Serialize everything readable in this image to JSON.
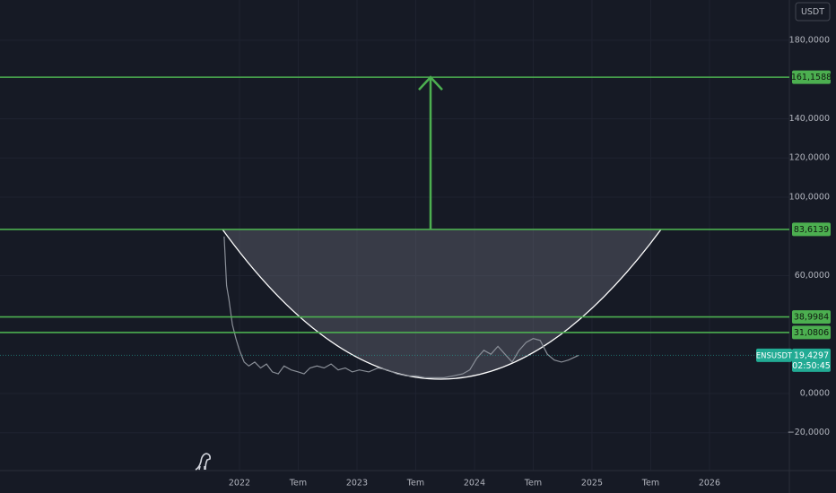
{
  "chart_data": {
    "type": "line",
    "currency_label": "USDT",
    "xlim": [
      2019.962,
      2026.68
    ],
    "xticks": [
      {
        "value": 2022.0,
        "label": "2022"
      },
      {
        "value": 2022.5,
        "label": "Tem"
      },
      {
        "value": 2023.0,
        "label": "2023"
      },
      {
        "value": 2023.5,
        "label": "Tem"
      },
      {
        "value": 2024.0,
        "label": "2024"
      },
      {
        "value": 2024.5,
        "label": "Tem"
      },
      {
        "value": 2025.0,
        "label": "2025"
      },
      {
        "value": 2025.5,
        "label": "Tem"
      },
      {
        "value": 2026.0,
        "label": "2026"
      }
    ],
    "ylim": [
      -39.3,
      200.5
    ],
    "yticks": [
      {
        "value": 180,
        "label": "180,0000"
      },
      {
        "value": 140,
        "label": "140,0000"
      },
      {
        "value": 120,
        "label": "120,0000"
      },
      {
        "value": 100,
        "label": "100,0000"
      },
      {
        "value": 60,
        "label": "60,0000"
      },
      {
        "value": 0,
        "label": "0,0000"
      },
      {
        "value": -20,
        "label": "−20,0000"
      }
    ],
    "grid": true,
    "series": [
      {
        "name": "ENSUSDT",
        "color": "#8a8f98",
        "x": [
          2021.87,
          2021.89,
          2021.91,
          2021.94,
          2021.97,
          2022.0,
          2022.04,
          2022.08,
          2022.13,
          2022.18,
          2022.23,
          2022.28,
          2022.33,
          2022.38,
          2022.44,
          2022.5,
          2022.55,
          2022.6,
          2022.66,
          2022.72,
          2022.78,
          2022.84,
          2022.9,
          2022.96,
          2023.02,
          2023.1,
          2023.18,
          2023.26,
          2023.34,
          2023.42,
          2023.5,
          2023.58,
          2023.66,
          2023.74,
          2023.82,
          2023.9,
          2023.96,
          2024.02,
          2024.08,
          2024.14,
          2024.2,
          2024.26,
          2024.32,
          2024.38,
          2024.44,
          2024.5,
          2024.56,
          2024.62,
          2024.68,
          2024.74,
          2024.8,
          2024.885
        ],
        "values": [
          80,
          55,
          48,
          35,
          28,
          22,
          16,
          14,
          16,
          13,
          15,
          11,
          10,
          14,
          12,
          11,
          10,
          13,
          14,
          13,
          15,
          12,
          13,
          11,
          12,
          11,
          13,
          12,
          10,
          9,
          9,
          8,
          8,
          8,
          9,
          10,
          12,
          18,
          22,
          20,
          24,
          20,
          16,
          22,
          26,
          28,
          27,
          20,
          17,
          16,
          17,
          19.4297
        ]
      }
    ],
    "levels": [
      {
        "value": 161.1588,
        "label": "161,1588"
      },
      {
        "value": 83.6139,
        "label": "83,6139"
      },
      {
        "value": 38.9984,
        "label": "38,9984"
      },
      {
        "value": 31.0806,
        "label": "31,0806"
      }
    ],
    "cup_bottom": 7.3,
    "last_price": {
      "value": 19.4297,
      "label": "19,4297",
      "countdown": "02:50:45"
    }
  }
}
